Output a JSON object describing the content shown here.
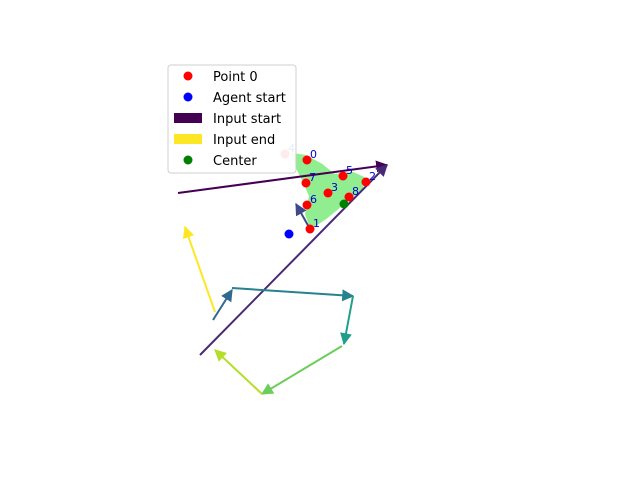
{
  "chart_data": {
    "type": "scatter",
    "title": "",
    "xlabel": "",
    "ylabel": "",
    "axes_visible": false,
    "grid": false,
    "legend_placement": "upper-left",
    "xlim": [
      0,
      640
    ],
    "ylim": [
      480,
      0
    ],
    "legend": [
      {
        "label": "Point 0",
        "marker": "dot",
        "color": "#ff0000"
      },
      {
        "label": "Agent start",
        "marker": "dot",
        "color": "#0000ff"
      },
      {
        "label": "Input start",
        "marker": "rect",
        "color": "#440154"
      },
      {
        "label": "Input end",
        "marker": "rect",
        "color": "#fde725"
      },
      {
        "label": "Center",
        "marker": "dot",
        "color": "#008000"
      }
    ],
    "region": {
      "color": "#90ee90",
      "polygon": [
        [
          311,
          252
        ],
        [
          326,
          262
        ],
        [
          343,
          276
        ],
        [
          362,
          292
        ],
        [
          364,
          302
        ],
        [
          353,
          307
        ],
        [
          334,
          305
        ],
        [
          322,
          315
        ],
        [
          306,
          324
        ],
        [
          292,
          326
        ],
        [
          298,
          310
        ],
        [
          304,
          298
        ],
        [
          310,
          284
        ],
        [
          306,
          266
        ]
      ]
    },
    "points": [
      {
        "label": "0",
        "x": 307,
        "y": 320
      },
      {
        "label": "1",
        "x": 310,
        "y": 251
      },
      {
        "label": "2",
        "x": 366,
        "y": 298
      },
      {
        "label": "3",
        "x": 328,
        "y": 287
      },
      {
        "label": "4",
        "x": 285,
        "y": 326
      },
      {
        "label": "5",
        "x": 343,
        "y": 304
      },
      {
        "label": "6",
        "x": 307,
        "y": 275
      },
      {
        "label": "7",
        "x": 306,
        "y": 297
      },
      {
        "label": "8",
        "x": 349,
        "y": 283
      }
    ],
    "point_color": "#ff0000",
    "label_color": "#0000cc",
    "agent_start": {
      "x": 289,
      "y": 246,
      "color": "#0000ff"
    },
    "center": {
      "x": 344,
      "y": 276,
      "color": "#008000"
    },
    "segments": [
      {
        "from": [
          178,
          287
        ],
        "to": [
          387,
          315
        ],
        "color": "#440154"
      },
      {
        "from": [
          200,
          125
        ],
        "to": [
          387,
          315
        ],
        "color": "#482878"
      },
      {
        "from": [
          310,
          251
        ],
        "to": [
          296,
          276
        ],
        "color": "#3e4a89"
      },
      {
        "from": [
          213,
          160
        ],
        "to": [
          232,
          190
        ],
        "color": "#31688e"
      },
      {
        "from": [
          232,
          192
        ],
        "to": [
          353,
          184
        ],
        "color": "#26828e"
      },
      {
        "from": [
          353,
          184
        ],
        "to": [
          344,
          136
        ],
        "color": "#1f9e89"
      },
      {
        "from": [
          342,
          134
        ],
        "to": [
          262,
          86
        ],
        "color": "#6ccd5a"
      },
      {
        "from": [
          262,
          86
        ],
        "to": [
          215,
          130
        ],
        "color": "#b5de2b"
      },
      {
        "from": [
          215,
          168
        ],
        "to": [
          185,
          253
        ],
        "color": "#fde725"
      }
    ]
  }
}
